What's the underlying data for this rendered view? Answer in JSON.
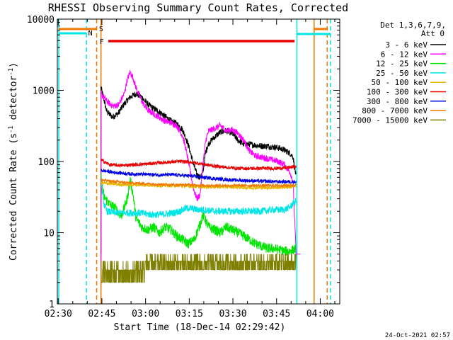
{
  "chart_data": {
    "type": "line",
    "title": "RHESSI Observing Summary Count Rates, Corrected",
    "xlabel": "Start Time (18-Dec-14 02:29:42)",
    "ylabel": "Corrected Count Rate (s",
    "ylabel_sup": "-1",
    "ylabel_mid": " detector",
    "ylabel_end": ")",
    "yscale": "log",
    "ylim": [
      1,
      10000
    ],
    "xlim_minutes": [
      0,
      97
    ],
    "x_ticks": [
      "02:30",
      "02:45",
      "03:00",
      "03:15",
      "03:30",
      "03:45",
      "04:00"
    ],
    "x_tick_minutes": [
      0.3,
      15.3,
      30.3,
      45.3,
      60.3,
      75.3,
      90.3
    ],
    "y_ticks": [
      "1",
      "10",
      "100",
      "1000",
      "10000"
    ],
    "y_tick_values": [
      1,
      10,
      100,
      1000,
      10000
    ],
    "legend_header": [
      "Det 1,3,6,7,9,",
      "Att 0"
    ],
    "legend_placement": "right",
    "timestamp": "24-Oct-2021 02:57",
    "flags": {
      "S_label": "S",
      "N_label": "N",
      "F_label": "F",
      "S_color": "#f07800",
      "N_color": "#00e6e6",
      "F_color": "#e60000"
    },
    "vlines": [
      {
        "t": 0.5,
        "color": "#00e6e6",
        "dash": false
      },
      {
        "t": 10,
        "color": "#00e6e6",
        "dash": true
      },
      {
        "t": 13.5,
        "color": "#f07800",
        "dash": true
      },
      {
        "t": 15,
        "color": "#f07800",
        "dash": false
      },
      {
        "t": 82.3,
        "color": "#00e6e6",
        "dash": false
      },
      {
        "t": 88.2,
        "color": "#f07800",
        "dash": false
      },
      {
        "t": 92.7,
        "color": "#f07800",
        "dash": true
      },
      {
        "t": 93.8,
        "color": "#00e6e6",
        "dash": true
      }
    ],
    "series": [
      {
        "name": "3 - 6 keV",
        "color": "#000000",
        "noise": 0.045,
        "points": [
          [
            15,
            1100
          ],
          [
            17,
            500
          ],
          [
            19,
            420
          ],
          [
            21,
            480
          ],
          [
            23,
            650
          ],
          [
            25,
            800
          ],
          [
            27,
            900
          ],
          [
            29,
            800
          ],
          [
            31,
            640
          ],
          [
            33,
            560
          ],
          [
            35,
            500
          ],
          [
            37,
            430
          ],
          [
            39,
            370
          ],
          [
            41,
            340
          ],
          [
            43,
            280
          ],
          [
            44,
            220
          ],
          [
            45,
            170
          ],
          [
            46,
            120
          ],
          [
            47,
            85
          ],
          [
            48,
            65
          ],
          [
            49,
            60
          ],
          [
            50,
            70
          ],
          [
            51,
            140
          ],
          [
            52,
            180
          ],
          [
            54,
            220
          ],
          [
            56,
            260
          ],
          [
            58,
            270
          ],
          [
            60,
            250
          ],
          [
            62,
            200
          ],
          [
            64,
            175
          ],
          [
            66,
            175
          ],
          [
            68,
            170
          ],
          [
            70,
            165
          ],
          [
            72,
            165
          ],
          [
            74,
            160
          ],
          [
            76,
            155
          ],
          [
            78,
            145
          ],
          [
            80,
            130
          ],
          [
            81,
            115
          ],
          [
            82,
            60
          ]
        ]
      },
      {
        "name": "6 - 12 keV",
        "color": "#ff00ff",
        "noise": 0.045,
        "points": [
          [
            15,
            900
          ],
          [
            17,
            700
          ],
          [
            19,
            600
          ],
          [
            21,
            620
          ],
          [
            23,
            900
          ],
          [
            24,
            1400
          ],
          [
            25,
            1800
          ],
          [
            26,
            1500
          ],
          [
            27,
            1100
          ],
          [
            29,
            700
          ],
          [
            31,
            530
          ],
          [
            33,
            470
          ],
          [
            35,
            420
          ],
          [
            37,
            370
          ],
          [
            39,
            350
          ],
          [
            41,
            320
          ],
          [
            43,
            230
          ],
          [
            44,
            160
          ],
          [
            45,
            100
          ],
          [
            46,
            60
          ],
          [
            47,
            38
          ],
          [
            48,
            30
          ],
          [
            49,
            34
          ],
          [
            50,
            90
          ],
          [
            51,
            200
          ],
          [
            52,
            270
          ],
          [
            54,
            290
          ],
          [
            56,
            320
          ],
          [
            58,
            270
          ],
          [
            60,
            280
          ],
          [
            62,
            250
          ],
          [
            64,
            200
          ],
          [
            66,
            140
          ],
          [
            68,
            120
          ],
          [
            70,
            115
          ],
          [
            72,
            110
          ],
          [
            74,
            105
          ],
          [
            76,
            100
          ],
          [
            78,
            90
          ],
          [
            80,
            70
          ],
          [
            81,
            50
          ],
          [
            82,
            5
          ]
        ]
      },
      {
        "name": "12 - 25 keV",
        "color": "#00e600",
        "noise": 0.07,
        "points": [
          [
            15,
            60
          ],
          [
            16,
            32
          ],
          [
            18,
            25
          ],
          [
            20,
            22
          ],
          [
            22,
            17
          ],
          [
            24,
            30
          ],
          [
            25,
            55
          ],
          [
            26,
            35
          ],
          [
            27,
            16
          ],
          [
            29,
            12
          ],
          [
            31,
            11
          ],
          [
            33,
            12
          ],
          [
            35,
            10
          ],
          [
            37,
            12
          ],
          [
            39,
            11
          ],
          [
            41,
            9
          ],
          [
            43,
            8
          ],
          [
            45,
            7
          ],
          [
            47,
            8
          ],
          [
            49,
            13
          ],
          [
            50,
            18
          ],
          [
            52,
            12
          ],
          [
            54,
            11
          ],
          [
            56,
            10
          ],
          [
            58,
            12
          ],
          [
            60,
            11
          ],
          [
            62,
            10
          ],
          [
            64,
            9
          ],
          [
            66,
            8
          ],
          [
            68,
            7
          ],
          [
            70,
            6.5
          ],
          [
            72,
            6
          ],
          [
            74,
            6
          ],
          [
            76,
            5.8
          ],
          [
            78,
            5.5
          ],
          [
            80,
            5.5
          ],
          [
            82,
            6
          ]
        ]
      },
      {
        "name": "25 - 50 keV",
        "color": "#00e6e6",
        "noise": 0.05,
        "points": [
          [
            15,
            50
          ],
          [
            16,
            25
          ],
          [
            17,
            20
          ],
          [
            20,
            19
          ],
          [
            24,
            19
          ],
          [
            28,
            19
          ],
          [
            32,
            18
          ],
          [
            36,
            18
          ],
          [
            40,
            19
          ],
          [
            42,
            20
          ],
          [
            44,
            22
          ],
          [
            46,
            22
          ],
          [
            48,
            21
          ],
          [
            50,
            21
          ],
          [
            54,
            20
          ],
          [
            58,
            20
          ],
          [
            62,
            20
          ],
          [
            66,
            20
          ],
          [
            70,
            20
          ],
          [
            74,
            21
          ],
          [
            78,
            21
          ],
          [
            80,
            23
          ],
          [
            81,
            26
          ],
          [
            82,
            28
          ]
        ]
      },
      {
        "name": "50 - 100 keV",
        "color": "#e6b400",
        "noise": 0.025,
        "points": [
          [
            15,
            50
          ],
          [
            20,
            48
          ],
          [
            25,
            47
          ],
          [
            30,
            47
          ],
          [
            35,
            46
          ],
          [
            40,
            46
          ],
          [
            45,
            45
          ],
          [
            50,
            44
          ],
          [
            55,
            44
          ],
          [
            60,
            44
          ],
          [
            65,
            43
          ],
          [
            70,
            43
          ],
          [
            75,
            43
          ],
          [
            80,
            44
          ],
          [
            82,
            45
          ]
        ]
      },
      {
        "name": "100 - 300 keV",
        "color": "#e60000",
        "noise": 0.025,
        "points": [
          [
            15,
            105
          ],
          [
            18,
            90
          ],
          [
            22,
            88
          ],
          [
            26,
            90
          ],
          [
            30,
            92
          ],
          [
            34,
            95
          ],
          [
            38,
            98
          ],
          [
            42,
            100
          ],
          [
            46,
            98
          ],
          [
            50,
            92
          ],
          [
            54,
            86
          ],
          [
            58,
            83
          ],
          [
            62,
            80
          ],
          [
            66,
            80
          ],
          [
            70,
            80
          ],
          [
            74,
            80
          ],
          [
            78,
            81
          ],
          [
            80,
            83
          ],
          [
            82,
            85
          ]
        ]
      },
      {
        "name": "300 - 800 keV",
        "color": "#0000e6",
        "noise": 0.025,
        "points": [
          [
            15,
            75
          ],
          [
            20,
            70
          ],
          [
            25,
            67
          ],
          [
            30,
            66
          ],
          [
            35,
            65
          ],
          [
            40,
            65
          ],
          [
            45,
            63
          ],
          [
            50,
            60
          ],
          [
            55,
            57
          ],
          [
            60,
            55
          ],
          [
            65,
            54
          ],
          [
            70,
            53
          ],
          [
            75,
            52
          ],
          [
            80,
            52
          ],
          [
            82,
            52
          ]
        ]
      },
      {
        "name": "800 - 7000 keV",
        "color": "#f07800",
        "noise": 0.02,
        "points": [
          [
            15,
            55
          ],
          [
            20,
            52
          ],
          [
            25,
            50
          ],
          [
            30,
            49
          ],
          [
            35,
            48
          ],
          [
            40,
            47
          ],
          [
            45,
            47
          ],
          [
            50,
            46
          ],
          [
            55,
            46
          ],
          [
            60,
            46
          ],
          [
            65,
            46
          ],
          [
            70,
            46
          ],
          [
            75,
            46
          ],
          [
            80,
            46
          ],
          [
            82,
            47
          ]
        ]
      },
      {
        "name": "7000 - 15000 keV",
        "color": "#7f7f00",
        "noise": 0.0,
        "points": [
          [
            15,
            3.5
          ],
          [
            20,
            3.2
          ],
          [
            25,
            3.0
          ],
          [
            30,
            3.0
          ],
          [
            35,
            3.2
          ],
          [
            40,
            3.6
          ],
          [
            45,
            3.8
          ],
          [
            50,
            4.0
          ],
          [
            55,
            4.0
          ],
          [
            60,
            4.0
          ],
          [
            65,
            4.1
          ],
          [
            70,
            4.0
          ],
          [
            75,
            4.0
          ],
          [
            80,
            4.0
          ],
          [
            82,
            4.0
          ]
        ]
      }
    ]
  }
}
